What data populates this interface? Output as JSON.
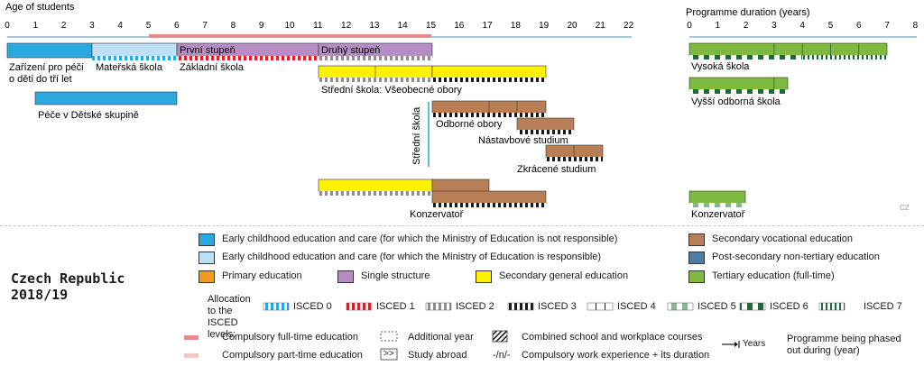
{
  "age_axis": {
    "label": "Age of students",
    "ticks": [
      "0",
      "1",
      "2",
      "3",
      "4",
      "5",
      "6",
      "7",
      "8",
      "9",
      "10",
      "11",
      "12",
      "13",
      "14",
      "15",
      "16",
      "17",
      "18",
      "19",
      "20",
      "21",
      "22"
    ]
  },
  "duration_axis": {
    "label": "Programme duration (years)",
    "ticks": [
      "0",
      "1",
      "2",
      "3",
      "4",
      "5",
      "6",
      "7",
      "8"
    ]
  },
  "programmes": {
    "ecec": "Zařízení pro péči o děti do tří let",
    "materska": "Mateřská škola",
    "zakladni": "Základní škola",
    "prvni": "První stupeň",
    "druhy": "Druhý stupeň",
    "skupina": "Péče v Dětské skupině",
    "stredni_vseob": "Střední škola: Všeobecné obory",
    "stredni_vertical": "Střední škola",
    "odborne": "Odborné obory",
    "nastavbove": "Nástavbové studium",
    "zkracene": "Zkrácené studium",
    "konzervator": "Konzervatoř",
    "vysoka": "Vysoká škola",
    "vyssi": "Vyšší odborná škola",
    "konzervator_t": "Konzervatoř",
    "country_code": "CZ"
  },
  "country": {
    "name": "Czech Republic",
    "year": "2018/19"
  },
  "legend": {
    "categories": [
      {
        "label": "Early childhood education and care (for which the Ministry of Education is not responsible)",
        "color": "#29a9e0"
      },
      {
        "label": "Early childhood education and care (for which the Ministry of Education is responsible)",
        "color": "#bde0f7"
      },
      {
        "label": "Primary education",
        "color": "#f29a1d"
      },
      {
        "label": "Single structure",
        "color": "#b58cc3"
      },
      {
        "label": "Secondary general education",
        "color": "#fff200"
      },
      {
        "label": "Secondary vocational education",
        "color": "#b87f57"
      },
      {
        "label": "Post-secondary non-tertiary education",
        "color": "#4c7ea6"
      },
      {
        "label": "Tertiary education (full-time)",
        "color": "#7dba3f"
      }
    ],
    "isced_prefix": "Allocation to the ISCED levels:",
    "isced": [
      "ISCED 0",
      "ISCED 1",
      "ISCED 2",
      "ISCED 3",
      "ISCED 4",
      "ISCED 5",
      "ISCED 6",
      "ISCED 7"
    ],
    "compulsory_full": "Compulsory full-time education",
    "compulsory_part": "Compulsory part-time education",
    "additional_year": "Additional year",
    "study_abroad_symbol": ">>",
    "study_abroad": "Study abroad",
    "combined": "Combined school and workplace courses",
    "work_symbol": "-/n/-",
    "work_experience": "Compulsory work experience + its duration",
    "years_text": "Years",
    "phased_out": "Programme being phased out during (year)"
  }
}
